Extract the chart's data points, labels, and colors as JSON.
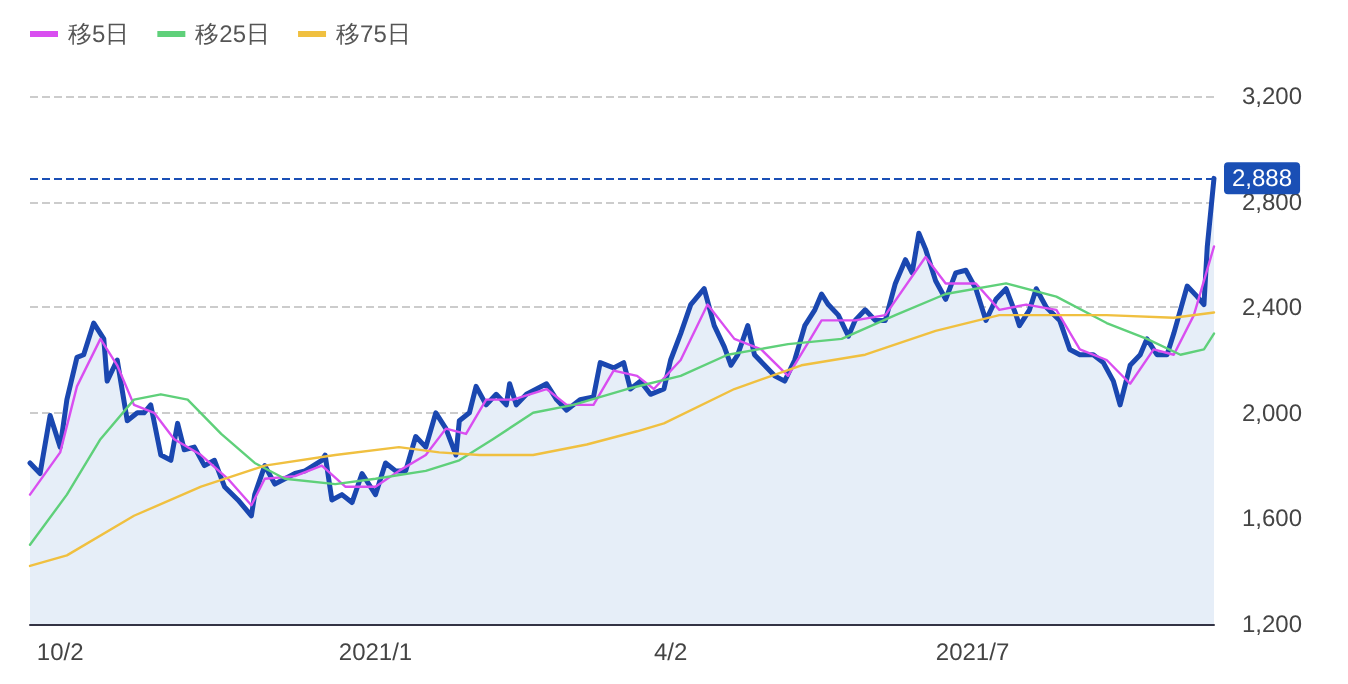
{
  "chart_data": {
    "type": "line",
    "xlim": [
      "2020-09-23",
      "2021-09-11"
    ],
    "xticks": [
      {
        "value": "2020-10-02",
        "label": "10/2"
      },
      {
        "value": "2021-01-04",
        "label": "2021/1"
      },
      {
        "value": "2021-04-02",
        "label": "4/2"
      },
      {
        "value": "2021-07-01",
        "label": "2021/7"
      }
    ],
    "ylim": [
      1200,
      3200
    ],
    "yticks": [
      {
        "value": 1200,
        "label": "1,200"
      },
      {
        "value": 1600,
        "label": "1,600"
      },
      {
        "value": 2000,
        "label": "2,000"
      },
      {
        "value": 2400,
        "label": "2,400"
      },
      {
        "value": 2800,
        "label": "2,800"
      },
      {
        "value": 3200,
        "label": "3,200"
      }
    ],
    "grid": "y",
    "legend": "top left",
    "marker": "none",
    "line_style": "solid",
    "ref_lines": [
      {
        "axis": "y",
        "value": 2888,
        "label": "2,888",
        "color": "#1a4fb5",
        "line_style": "dashed"
      }
    ],
    "series": [
      {
        "type": "area",
        "color": "#1a47b0",
        "x": [
          "2020-09-23",
          "2020-09-26",
          "2020-09-29",
          "2020-10-02",
          "2020-10-04",
          "2020-10-07",
          "2020-10-09",
          "2020-10-12",
          "2020-10-15",
          "2020-10-16",
          "2020-10-19",
          "2020-10-22",
          "2020-10-25",
          "2020-10-27",
          "2020-10-29",
          "2020-11-01",
          "2020-11-04",
          "2020-11-06",
          "2020-11-08",
          "2020-11-11",
          "2020-11-14",
          "2020-11-17",
          "2020-11-20",
          "2020-11-24",
          "2020-11-28",
          "2020-11-29",
          "2020-12-02",
          "2020-12-05",
          "2020-12-08",
          "2020-12-11",
          "2020-12-14",
          "2020-12-19",
          "2020-12-20",
          "2020-12-22",
          "2020-12-25",
          "2020-12-28",
          "2020-12-31",
          "2021-01-04",
          "2021-01-07",
          "2021-01-10",
          "2021-01-13",
          "2021-01-16",
          "2021-01-19",
          "2021-01-22",
          "2021-01-25",
          "2021-01-28",
          "2021-01-29",
          "2021-02-01",
          "2021-02-03",
          "2021-02-06",
          "2021-02-09",
          "2021-02-12",
          "2021-02-13",
          "2021-02-15",
          "2021-02-18",
          "2021-02-21",
          "2021-02-24",
          "2021-02-27",
          "2021-03-02",
          "2021-03-06",
          "2021-03-10",
          "2021-03-12",
          "2021-03-16",
          "2021-03-19",
          "2021-03-21",
          "2021-03-24",
          "2021-03-27",
          "2021-03-31",
          "2021-04-02",
          "2021-04-05",
          "2021-04-08",
          "2021-04-12",
          "2021-04-15",
          "2021-04-18",
          "2021-04-20",
          "2021-04-22",
          "2021-04-25",
          "2021-04-27",
          "2021-04-30",
          "2021-05-03",
          "2021-05-06",
          "2021-05-09",
          "2021-05-12",
          "2021-05-15",
          "2021-05-17",
          "2021-05-19",
          "2021-05-22",
          "2021-05-25",
          "2021-05-27",
          "2021-05-30",
          "2021-06-02",
          "2021-06-05",
          "2021-06-08",
          "2021-06-11",
          "2021-06-13",
          "2021-06-15",
          "2021-06-17",
          "2021-06-20",
          "2021-06-23",
          "2021-06-26",
          "2021-06-29",
          "2021-07-02",
          "2021-07-05",
          "2021-07-08",
          "2021-07-11",
          "2021-07-14",
          "2021-07-15",
          "2021-07-18",
          "2021-07-20",
          "2021-07-23",
          "2021-07-27",
          "2021-07-30",
          "2021-08-02",
          "2021-08-06",
          "2021-08-09",
          "2021-08-12",
          "2021-08-14",
          "2021-08-17",
          "2021-08-20",
          "2021-08-22",
          "2021-08-25",
          "2021-08-28",
          "2021-08-30",
          "2021-09-03",
          "2021-09-06",
          "2021-09-08",
          "2021-09-09",
          "2021-09-11"
        ],
        "values": [
          1810,
          1770,
          1990,
          1870,
          2050,
          2210,
          2220,
          2340,
          2280,
          2120,
          2200,
          1970,
          2000,
          2000,
          2030,
          1840,
          1820,
          1960,
          1860,
          1870,
          1800,
          1820,
          1720,
          1670,
          1610,
          1690,
          1800,
          1730,
          1750,
          1770,
          1780,
          1820,
          1840,
          1670,
          1690,
          1660,
          1770,
          1690,
          1810,
          1780,
          1780,
          1910,
          1870,
          2000,
          1940,
          1840,
          1970,
          2000,
          2100,
          2030,
          2070,
          2030,
          2110,
          2030,
          2070,
          2090,
          2110,
          2050,
          2010,
          2050,
          2060,
          2190,
          2170,
          2190,
          2090,
          2120,
          2070,
          2090,
          2200,
          2300,
          2410,
          2470,
          2330,
          2250,
          2180,
          2220,
          2330,
          2220,
          2180,
          2140,
          2120,
          2200,
          2330,
          2390,
          2450,
          2410,
          2370,
          2290,
          2350,
          2390,
          2350,
          2350,
          2490,
          2580,
          2530,
          2680,
          2620,
          2500,
          2430,
          2530,
          2540,
          2470,
          2350,
          2430,
          2470,
          2370,
          2330,
          2390,
          2470,
          2400,
          2350,
          2240,
          2220,
          2220,
          2190,
          2120,
          2030,
          2180,
          2220,
          2280,
          2220,
          2220,
          2300,
          2480,
          2440,
          2410,
          2630,
          2888
        ]
      },
      {
        "type": "line",
        "name": "移5日",
        "color": "#d94ef0",
        "x": [
          "2020-09-23",
          "2020-10-02",
          "2020-10-07",
          "2020-10-14",
          "2020-10-19",
          "2020-10-24",
          "2020-10-30",
          "2020-11-05",
          "2020-11-13",
          "2020-11-21",
          "2020-11-28",
          "2020-12-02",
          "2020-12-11",
          "2020-12-19",
          "2020-12-26",
          "2021-01-04",
          "2021-01-11",
          "2021-01-19",
          "2021-01-25",
          "2021-01-31",
          "2021-02-06",
          "2021-02-14",
          "2021-02-24",
          "2021-03-02",
          "2021-03-10",
          "2021-03-16",
          "2021-03-23",
          "2021-03-28",
          "2021-04-05",
          "2021-04-13",
          "2021-04-21",
          "2021-04-29",
          "2021-05-07",
          "2021-05-17",
          "2021-05-27",
          "2021-06-05",
          "2021-06-17",
          "2021-06-23",
          "2021-07-02",
          "2021-07-09",
          "2021-07-17",
          "2021-07-26",
          "2021-08-02",
          "2021-08-10",
          "2021-08-17",
          "2021-08-24",
          "2021-08-30",
          "2021-09-05",
          "2021-09-11"
        ],
        "values": [
          1690,
          1850,
          2100,
          2280,
          2180,
          2030,
          2000,
          1900,
          1840,
          1750,
          1650,
          1750,
          1760,
          1800,
          1720,
          1720,
          1780,
          1840,
          1940,
          1920,
          2050,
          2050,
          2090,
          2030,
          2030,
          2160,
          2140,
          2090,
          2200,
          2410,
          2280,
          2240,
          2140,
          2350,
          2350,
          2370,
          2590,
          2490,
          2490,
          2390,
          2410,
          2390,
          2240,
          2200,
          2110,
          2240,
          2220,
          2370,
          2630
        ]
      },
      {
        "type": "line",
        "name": "移25日",
        "color": "#5fd07a",
        "x": [
          "2020-09-23",
          "2020-10-04",
          "2020-10-14",
          "2020-10-24",
          "2020-11-01",
          "2020-11-09",
          "2020-11-19",
          "2020-11-29",
          "2020-12-08",
          "2020-12-23",
          "2021-01-04",
          "2021-01-19",
          "2021-01-29",
          "2021-02-08",
          "2021-02-20",
          "2021-03-04",
          "2021-03-20",
          "2021-04-05",
          "2021-04-19",
          "2021-05-07",
          "2021-05-23",
          "2021-06-08",
          "2021-06-23",
          "2021-07-11",
          "2021-07-26",
          "2021-08-10",
          "2021-08-22",
          "2021-09-01",
          "2021-09-08",
          "2021-09-11"
        ],
        "values": [
          1500,
          1690,
          1900,
          2050,
          2070,
          2050,
          1920,
          1810,
          1750,
          1730,
          1750,
          1780,
          1820,
          1900,
          2000,
          2030,
          2090,
          2140,
          2220,
          2260,
          2280,
          2370,
          2450,
          2490,
          2440,
          2340,
          2280,
          2220,
          2240,
          2300
        ]
      },
      {
        "type": "line",
        "name": "移75日",
        "color": "#f0c040",
        "x": [
          "2020-09-23",
          "2020-10-04",
          "2020-10-24",
          "2020-11-13",
          "2020-12-02",
          "2020-12-23",
          "2021-01-11",
          "2021-01-23",
          "2021-02-04",
          "2021-02-20",
          "2021-03-08",
          "2021-03-23",
          "2021-03-31",
          "2021-04-21",
          "2021-05-11",
          "2021-05-30",
          "2021-06-20",
          "2021-07-09",
          "2021-07-26",
          "2021-08-10",
          "2021-08-30",
          "2021-09-11"
        ],
        "values": [
          1420,
          1460,
          1610,
          1720,
          1800,
          1840,
          1870,
          1850,
          1840,
          1840,
          1880,
          1930,
          1960,
          2090,
          2180,
          2220,
          2310,
          2370,
          2370,
          2370,
          2360,
          2380
        ]
      }
    ]
  }
}
